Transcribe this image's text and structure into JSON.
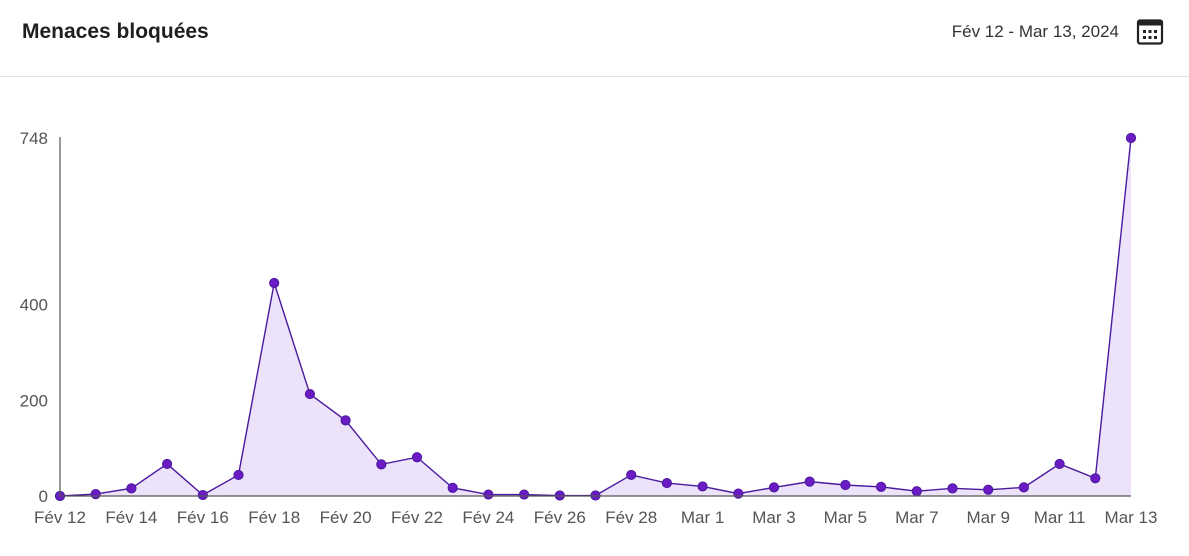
{
  "header": {
    "title": "Menaces bloquées",
    "date_range": "Fév 12 - Mar 13, 2024",
    "calendar_icon": "calendar-icon"
  },
  "colors": {
    "line": "#4b1a9e",
    "point": "#6a1bc4",
    "area": "#ece2fa",
    "axis": "#555555"
  },
  "chart_data": {
    "type": "area",
    "title": "",
    "xlabel": "",
    "ylabel": "",
    "x": [
      "Fév 12",
      "Fév 13",
      "Fév 14",
      "Fév 15",
      "Fév 16",
      "Fév 17",
      "Fév 18",
      "Fév 19",
      "Fév 20",
      "Fév 21",
      "Fév 22",
      "Fév 23",
      "Fév 24",
      "Fév 25",
      "Fév 26",
      "Fév 27",
      "Fév 28",
      "Fév 29",
      "Mar 1",
      "Mar 2",
      "Mar 3",
      "Mar 4",
      "Mar 5",
      "Mar 6",
      "Mar 7",
      "Mar 8",
      "Mar 9",
      "Mar 10",
      "Mar 11",
      "Mar 12",
      "Mar 13"
    ],
    "x_tick_labels": [
      "Fév 12",
      "Fév 14",
      "Fév 16",
      "Fév 18",
      "Fév 20",
      "Fév 22",
      "Fév 24",
      "Fév 26",
      "Fév 28",
      "Mar 1",
      "Mar 3",
      "Mar 5",
      "Mar 7",
      "Mar 9",
      "Mar 11",
      "Mar 13"
    ],
    "y_ticks": [
      0,
      200,
      400,
      748
    ],
    "ylim": [
      0,
      748
    ],
    "grid": false,
    "series": [
      {
        "values": [
          0,
          4,
          16,
          67,
          2,
          44,
          445,
          213,
          158,
          66,
          81,
          17,
          3,
          3,
          1,
          1,
          44,
          27,
          20,
          5,
          18,
          30,
          23,
          19,
          10,
          16,
          13,
          18,
          67,
          37,
          748
        ]
      }
    ]
  }
}
